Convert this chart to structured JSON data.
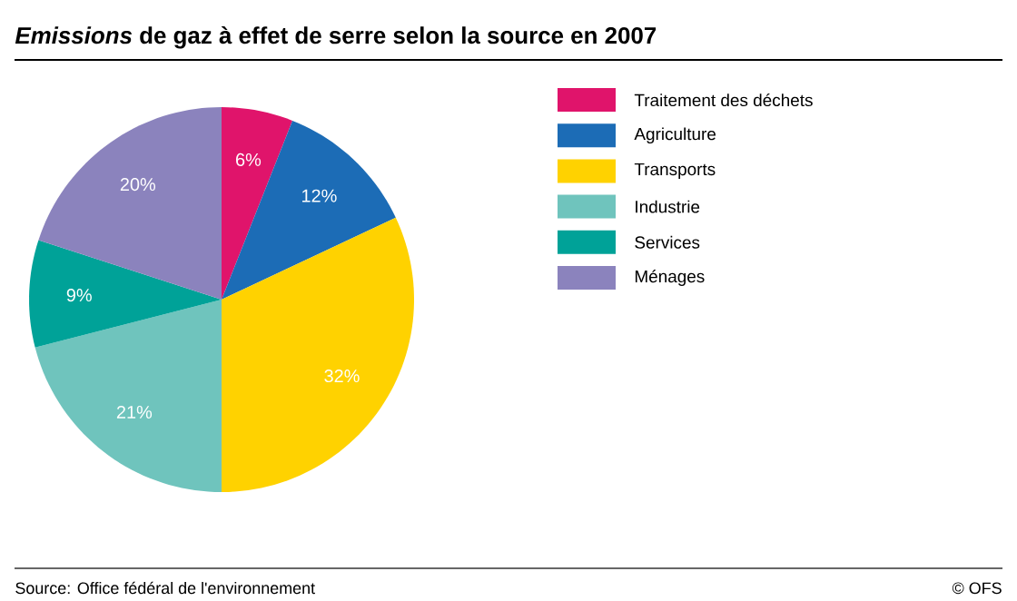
{
  "chart_data": {
    "type": "pie",
    "title": "*Emissions* de gaz à effet de serre selon la source en 2007",
    "categories": [
      "Traitement des déchets",
      "Agriculture",
      "Transports",
      "Industrie",
      "Services",
      "Ménages"
    ],
    "values": [
      6,
      12,
      32,
      21,
      9,
      20
    ],
    "value_labels": [
      "6%",
      "12%",
      "32%",
      "21%",
      "9%",
      "20%"
    ],
    "colors": [
      "#e0146b",
      "#1c6cb6",
      "#ffd200",
      "#6fc4bd",
      "#00a298",
      "#8b83bd"
    ],
    "legend": "right",
    "annotations": [
      "Source: Office fédéral de l'environnement",
      "© OFS"
    ]
  }
}
